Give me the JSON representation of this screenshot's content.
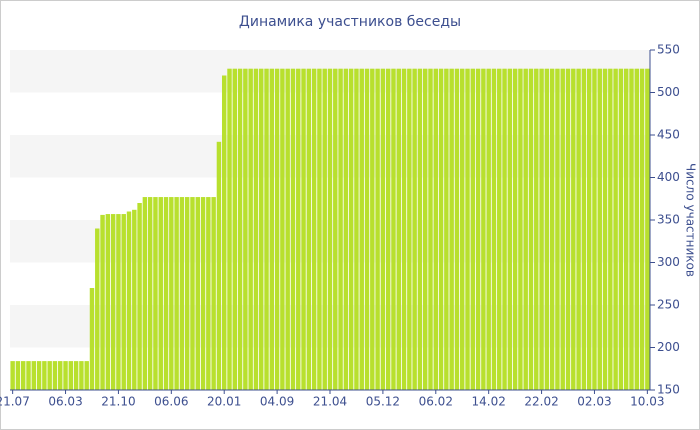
{
  "chart_data": {
    "type": "bar",
    "title": "Динамика участников беседы",
    "y_label": "Число участников",
    "categories": [
      "21.07",
      null,
      null,
      null,
      null,
      null,
      null,
      null,
      null,
      null,
      "06.03",
      null,
      null,
      null,
      null,
      null,
      null,
      null,
      null,
      null,
      "21.10",
      null,
      null,
      null,
      null,
      null,
      null,
      null,
      null,
      null,
      "06.06",
      null,
      null,
      null,
      null,
      null,
      null,
      null,
      null,
      null,
      "20.01",
      null,
      null,
      null,
      null,
      null,
      null,
      null,
      null,
      null,
      "04.09",
      null,
      null,
      null,
      null,
      null,
      null,
      null,
      null,
      null,
      "21.04",
      null,
      null,
      null,
      null,
      null,
      null,
      null,
      null,
      null,
      "05.12",
      null,
      null,
      null,
      null,
      null,
      null,
      null,
      null,
      null,
      "06.02",
      null,
      null,
      null,
      null,
      null,
      null,
      null,
      null,
      null,
      "14.02",
      null,
      null,
      null,
      null,
      null,
      null,
      null,
      null,
      null,
      "22.02",
      null,
      null,
      null,
      null,
      null,
      null,
      null,
      null,
      null,
      "02.03",
      null,
      null,
      null,
      null,
      null,
      null,
      null,
      null,
      null,
      "10.03"
    ],
    "values": [
      184,
      184,
      184,
      184,
      184,
      184,
      184,
      184,
      184,
      184,
      184,
      184,
      184,
      184,
      184,
      270,
      340,
      356,
      357,
      357,
      357,
      357,
      360,
      362,
      370,
      377,
      377,
      377,
      377,
      377,
      377,
      377,
      377,
      377,
      377,
      377,
      377,
      377,
      377,
      442,
      520,
      528,
      528,
      528,
      528,
      528,
      528,
      528,
      528,
      528,
      528,
      528,
      528,
      528,
      528,
      528,
      528,
      528,
      528,
      528,
      528,
      528,
      528,
      528,
      528,
      528,
      528,
      528,
      528,
      528,
      528,
      528,
      528,
      528,
      528,
      528,
      528,
      528,
      528,
      528,
      528,
      528,
      528,
      528,
      528,
      528,
      528,
      528,
      528,
      528,
      528,
      528,
      528,
      528,
      528,
      528,
      528,
      528,
      528,
      528,
      528,
      528,
      528,
      528,
      528,
      528,
      528,
      528,
      528,
      528,
      528,
      528,
      528,
      528,
      528,
      528,
      528,
      528,
      528,
      528,
      528
    ],
    "color": "#b8e02e",
    "ylim": [
      150,
      550
    ],
    "yticks": [
      150,
      200,
      250,
      300,
      350,
      400,
      450,
      500,
      550
    ],
    "grid": "bands"
  }
}
